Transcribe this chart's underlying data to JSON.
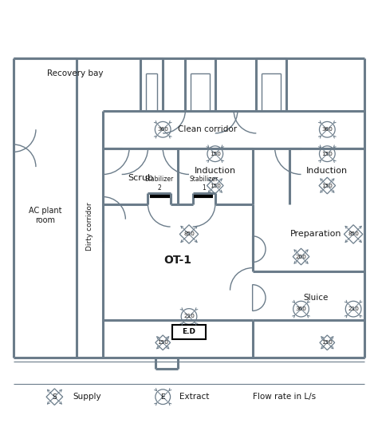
{
  "wall_color": "#6b7c8a",
  "wall_lw": 2.2,
  "thin_lw": 1.0,
  "text_color": "#1a1a1a",
  "figsize": [
    4.74,
    5.4
  ],
  "dpi": 100,
  "labels": {
    "recovery_bay": "Recovery bay",
    "clean_corridor": "Clean corridor",
    "dirty_corridor": "Dirty corridor",
    "ac_plant": "AC plant\nroom",
    "scrub": "Scrub",
    "induction1": "Induction",
    "induction2": "Induction",
    "preparation": "Preparation",
    "ot1": "OT-1",
    "sluice": "Sluice",
    "stab1": "Stabilizer\n1",
    "stab2": "Stabilizer\n2",
    "ed": "E.D",
    "supply_leg": "Supply",
    "extract_leg": "Extract",
    "flowrate": "Flow rate in L/s"
  },
  "flow_values": {
    "clean_360_1": "360",
    "clean_360_2": "360",
    "ind1_top": "150",
    "ind1_mid": "150",
    "ind2_top": "150",
    "ind2_mid": "150",
    "ot1_850": "850",
    "ot1_210": "210",
    "ot1_150": "150",
    "prep_850": "850",
    "prep_200": "200",
    "prep_210": "210",
    "sluice_360": "360",
    "sluice_150": "150"
  }
}
